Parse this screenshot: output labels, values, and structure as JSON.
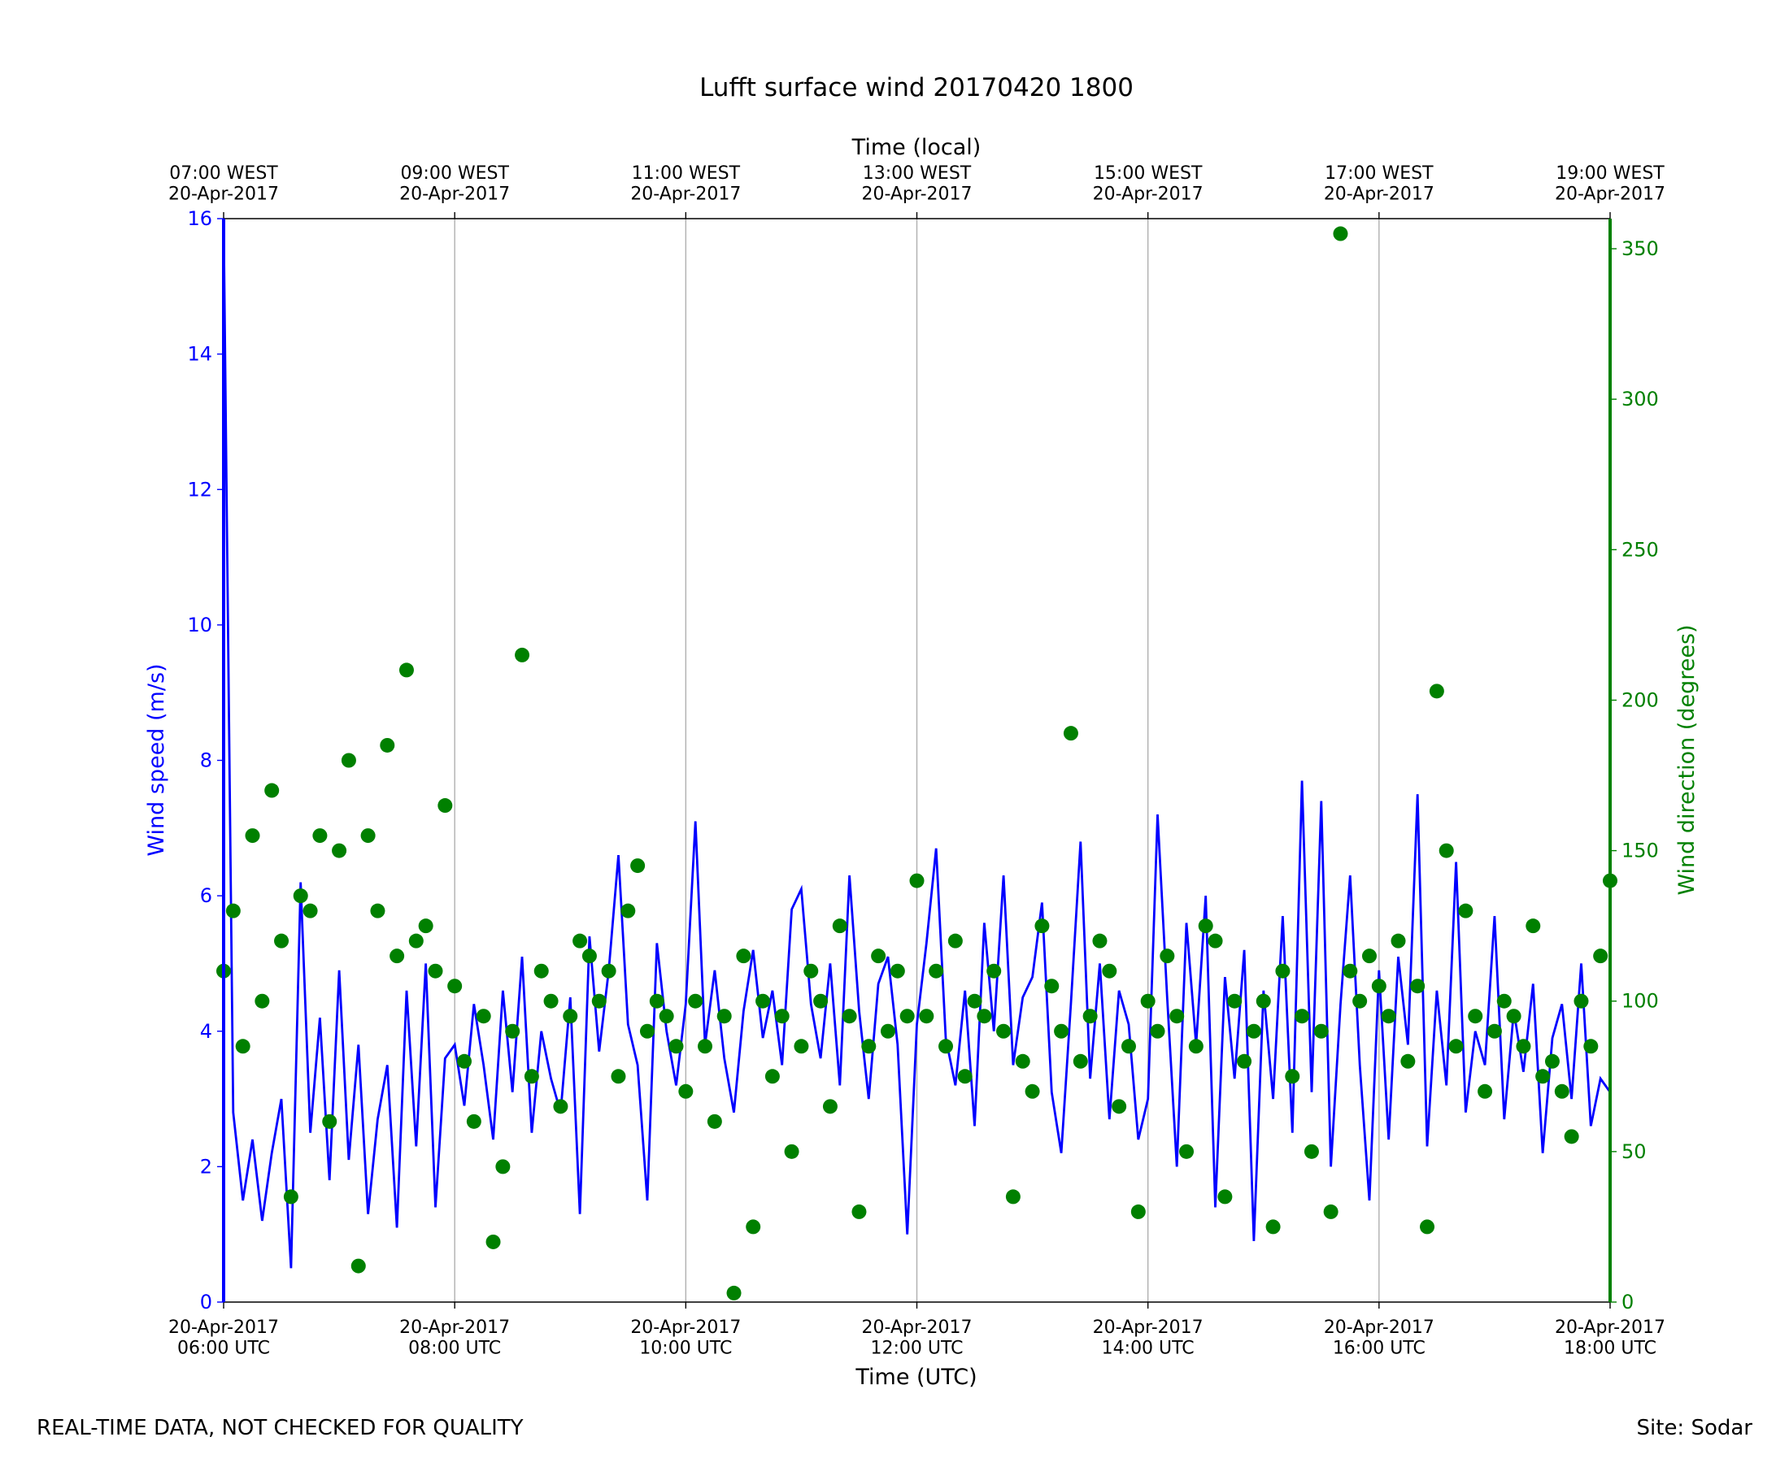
{
  "chart_data": {
    "type": "line",
    "title": "Lufft surface wind 20170420 1800",
    "xlabel": "Time (UTC)",
    "x2label": "Time (local)",
    "ylabel": "Wind speed (m/s)",
    "y2label": "Wind direction (degrees)",
    "footer_left": "REAL-TIME DATA, NOT CHECKED FOR QUALITY",
    "footer_right": "Site: Sodar",
    "xlim": [
      "06:00",
      "18:00"
    ],
    "xticks": [
      {
        "value": "06:00",
        "label": "20-Apr-2017\n06:00 UTC"
      },
      {
        "value": "08:00",
        "label": "20-Apr-2017\n08:00 UTC"
      },
      {
        "value": "10:00",
        "label": "20-Apr-2017\n10:00 UTC"
      },
      {
        "value": "12:00",
        "label": "20-Apr-2017\n12:00 UTC"
      },
      {
        "value": "14:00",
        "label": "20-Apr-2017\n14:00 UTC"
      },
      {
        "value": "16:00",
        "label": "20-Apr-2017\n16:00 UTC"
      },
      {
        "value": "18:00",
        "label": "20-Apr-2017\n18:00 UTC"
      }
    ],
    "x2ticks": [
      {
        "value": "06:00",
        "label": "07:00 WEST\n20-Apr-2017"
      },
      {
        "value": "08:00",
        "label": "09:00 WEST\n20-Apr-2017"
      },
      {
        "value": "10:00",
        "label": "11:00 WEST\n20-Apr-2017"
      },
      {
        "value": "12:00",
        "label": "13:00 WEST\n20-Apr-2017"
      },
      {
        "value": "14:00",
        "label": "15:00 WEST\n20-Apr-2017"
      },
      {
        "value": "16:00",
        "label": "17:00 WEST\n20-Apr-2017"
      },
      {
        "value": "18:00",
        "label": "19:00 WEST\n20-Apr-2017"
      }
    ],
    "ylim": [
      0,
      16
    ],
    "yticks": [
      0,
      2,
      4,
      6,
      8,
      10,
      12,
      14,
      16
    ],
    "y2lim": [
      0,
      360
    ],
    "y2ticks": [
      0,
      50,
      100,
      150,
      200,
      250,
      300,
      350
    ],
    "grid": "x",
    "x": [
      "06:00",
      "06:05",
      "06:10",
      "06:15",
      "06:20",
      "06:25",
      "06:30",
      "06:35",
      "06:40",
      "06:45",
      "06:50",
      "06:55",
      "07:00",
      "07:05",
      "07:10",
      "07:15",
      "07:20",
      "07:25",
      "07:30",
      "07:35",
      "07:40",
      "07:45",
      "07:50",
      "07:55",
      "08:00",
      "08:05",
      "08:10",
      "08:15",
      "08:20",
      "08:25",
      "08:30",
      "08:35",
      "08:40",
      "08:45",
      "08:50",
      "08:55",
      "09:00",
      "09:05",
      "09:10",
      "09:15",
      "09:20",
      "09:25",
      "09:30",
      "09:35",
      "09:40",
      "09:45",
      "09:50",
      "09:55",
      "10:00",
      "10:05",
      "10:10",
      "10:15",
      "10:20",
      "10:25",
      "10:30",
      "10:35",
      "10:40",
      "10:45",
      "10:50",
      "10:55",
      "11:00",
      "11:05",
      "11:10",
      "11:15",
      "11:20",
      "11:25",
      "11:30",
      "11:35",
      "11:40",
      "11:45",
      "11:50",
      "11:55",
      "12:00",
      "12:05",
      "12:10",
      "12:15",
      "12:20",
      "12:25",
      "12:30",
      "12:35",
      "12:40",
      "12:45",
      "12:50",
      "12:55",
      "13:00",
      "13:05",
      "13:10",
      "13:15",
      "13:20",
      "13:25",
      "13:30",
      "13:35",
      "13:40",
      "13:45",
      "13:50",
      "13:55",
      "14:00",
      "14:05",
      "14:10",
      "14:15",
      "14:20",
      "14:25",
      "14:30",
      "14:35",
      "14:40",
      "14:45",
      "14:50",
      "14:55",
      "15:00",
      "15:05",
      "15:10",
      "15:15",
      "15:20",
      "15:25",
      "15:30",
      "15:35",
      "15:40",
      "15:45",
      "15:50",
      "15:55",
      "16:00",
      "16:05",
      "16:10",
      "16:15",
      "16:20",
      "16:25",
      "16:30",
      "16:35",
      "16:40",
      "16:45",
      "16:50",
      "16:55",
      "17:00",
      "17:05",
      "17:10",
      "17:15",
      "17:20",
      "17:25",
      "17:30",
      "17:35",
      "17:40",
      "17:45",
      "17:50",
      "17:55",
      "18:00"
    ],
    "series": [
      {
        "color": "#0000ff",
        "axis": "y",
        "style": "line",
        "values": [
          16,
          2.8,
          1.5,
          2.4,
          1.2,
          2.2,
          3.0,
          0.5,
          6.2,
          2.5,
          4.2,
          1.8,
          4.9,
          2.1,
          3.8,
          1.3,
          2.7,
          3.5,
          1.1,
          4.6,
          2.3,
          5.0,
          1.4,
          3.6,
          3.8,
          2.9,
          4.4,
          3.5,
          2.4,
          4.6,
          3.1,
          5.1,
          2.5,
          4.0,
          3.3,
          2.8,
          4.5,
          1.3,
          5.4,
          3.7,
          4.9,
          6.6,
          4.1,
          3.5,
          1.5,
          5.3,
          4.0,
          3.2,
          4.4,
          7.1,
          3.8,
          4.9,
          3.6,
          2.8,
          4.3,
          5.2,
          3.9,
          4.6,
          3.5,
          5.8,
          6.1,
          4.4,
          3.6,
          5.0,
          3.2,
          6.3,
          4.3,
          3.0,
          4.7,
          5.1,
          3.8,
          1.0,
          4.1,
          5.3,
          6.7,
          3.9,
          3.2,
          4.6,
          2.6,
          5.6,
          4.0,
          6.3,
          3.5,
          4.5,
          4.8,
          5.9,
          3.1,
          2.2,
          4.4,
          6.8,
          3.3,
          5.0,
          2.7,
          4.6,
          4.1,
          2.4,
          3.0,
          7.2,
          4.5,
          2.0,
          5.6,
          3.8,
          6.0,
          1.4,
          4.8,
          3.3,
          5.2,
          0.9,
          4.6,
          3.0,
          5.7,
          2.5,
          7.7,
          3.1,
          7.4,
          2.0,
          4.4,
          6.3,
          3.5,
          1.5,
          4.9,
          2.4,
          5.1,
          3.8,
          7.5,
          2.3,
          4.6,
          3.2,
          6.5,
          2.8,
          4.0,
          3.5,
          5.7,
          2.7,
          4.3,
          3.4,
          4.7,
          2.2,
          3.9,
          4.4,
          3.0,
          5.0,
          2.6,
          3.3,
          3.1
        ]
      },
      {
        "color": "#008000",
        "axis": "y2",
        "style": "scatter",
        "values": [
          110,
          130,
          85,
          155,
          100,
          170,
          120,
          35,
          135,
          130,
          155,
          60,
          150,
          180,
          12,
          155,
          130,
          185,
          115,
          210,
          120,
          125,
          110,
          165,
          105,
          80,
          60,
          95,
          20,
          45,
          90,
          215,
          75,
          110,
          100,
          65,
          95,
          120,
          115,
          100,
          110,
          75,
          130,
          145,
          90,
          100,
          95,
          85,
          70,
          100,
          85,
          60,
          95,
          3,
          115,
          25,
          100,
          75,
          95,
          50,
          85,
          110,
          100,
          65,
          125,
          95,
          30,
          85,
          115,
          90,
          110,
          95,
          140,
          95,
          110,
          85,
          120,
          75,
          100,
          95,
          110,
          90,
          35,
          80,
          70,
          125,
          105,
          90,
          189,
          80,
          95,
          120,
          110,
          65,
          85,
          30,
          100,
          90,
          115,
          95,
          50,
          85,
          125,
          120,
          35,
          100,
          80,
          90,
          100,
          25,
          110,
          75,
          95,
          50,
          90,
          30,
          355,
          110,
          100,
          115,
          105,
          95,
          120,
          80,
          105,
          25,
          203,
          150,
          85,
          130,
          95,
          70,
          90,
          100,
          95,
          85,
          125,
          75,
          80,
          70,
          55,
          100,
          85,
          115,
          140
        ]
      }
    ]
  }
}
